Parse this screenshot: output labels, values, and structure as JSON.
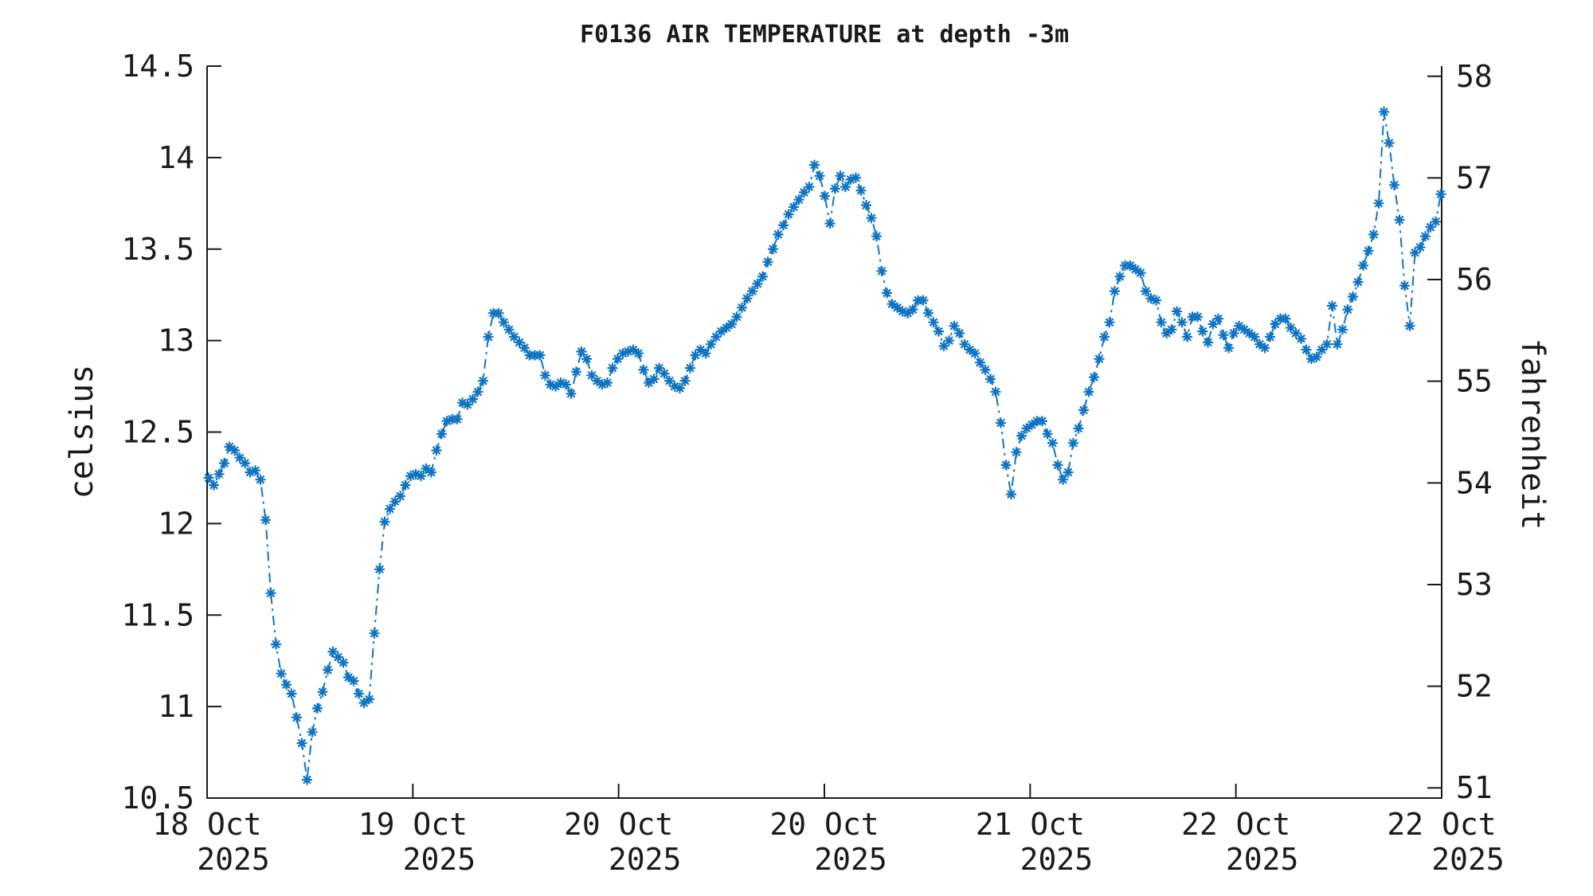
{
  "title": "F0136 AIR TEMPERATURE at depth -3m",
  "left_axis": {
    "label": "celsius",
    "ticks": [
      "14.5",
      "14",
      "13.5",
      "13",
      "12.5",
      "12",
      "11.5",
      "11",
      "10.5"
    ],
    "tick_values": [
      14.5,
      14,
      13.5,
      13,
      12.5,
      12,
      11.5,
      11,
      10.5
    ],
    "range": [
      10.5,
      14.5
    ]
  },
  "right_axis": {
    "label": "fahrenheit",
    "ticks": [
      "58",
      "57",
      "56",
      "55",
      "54",
      "53",
      "52",
      "51"
    ],
    "tick_values": [
      58,
      57,
      56,
      55,
      54,
      53,
      52,
      51
    ]
  },
  "x_axis": {
    "ticks": [
      {
        "line1": "18 Oct",
        "line2": "2025"
      },
      {
        "line1": "19 Oct",
        "line2": "2025"
      },
      {
        "line1": "20 Oct",
        "line2": "2025"
      },
      {
        "line1": "20 Oct",
        "line2": "2025"
      },
      {
        "line1": "21 Oct",
        "line2": "2025"
      },
      {
        "line1": "22 Oct",
        "line2": "2025"
      },
      {
        "line1": "22 Oct",
        "line2": "2025"
      }
    ]
  },
  "chart_data": {
    "type": "line",
    "title": "F0136 AIR TEMPERATURE at depth -3m",
    "ylabel_left": "celsius",
    "ylabel_right": "fahrenheit",
    "ylim_celsius": [
      10.5,
      14.5
    ],
    "right_ticks_fahrenheit": [
      51,
      52,
      53,
      54,
      55,
      56,
      57,
      58
    ],
    "x_tick_labels": [
      "18 Oct 2025",
      "19 Oct 2025",
      "20 Oct 2025",
      "20 Oct 2025",
      "21 Oct 2025",
      "22 Oct 2025",
      "22 Oct 2025"
    ],
    "grid": false,
    "legend": "none",
    "marker": "asterisk",
    "line_style": "dash-dot",
    "color": "#0e74c2",
    "x_frac_start": 0.00129,
    "x_frac_step": 0.0041935,
    "celsius": [
      12.25,
      12.21,
      12.27,
      12.33,
      12.42,
      12.4,
      12.36,
      12.33,
      12.28,
      12.29,
      12.24,
      12.02,
      11.62,
      11.34,
      11.18,
      11.12,
      11.07,
      10.94,
      10.8,
      10.6,
      10.86,
      10.99,
      11.08,
      11.2,
      11.3,
      11.27,
      11.24,
      11.16,
      11.14,
      11.07,
      11.02,
      11.04,
      11.4,
      11.75,
      12.01,
      12.08,
      12.12,
      12.15,
      12.21,
      12.26,
      12.27,
      12.26,
      12.3,
      12.28,
      12.4,
      12.49,
      12.56,
      12.57,
      12.57,
      12.66,
      12.65,
      12.68,
      12.72,
      12.78,
      13.02,
      13.15,
      13.15,
      13.1,
      13.06,
      13.02,
      12.99,
      12.96,
      12.92,
      12.92,
      12.92,
      12.81,
      12.76,
      12.75,
      12.77,
      12.76,
      12.71,
      12.83,
      12.94,
      12.9,
      12.81,
      12.78,
      12.76,
      12.77,
      12.85,
      12.9,
      12.93,
      12.94,
      12.95,
      12.93,
      12.84,
      12.77,
      12.79,
      12.85,
      12.82,
      12.78,
      12.75,
      12.74,
      12.78,
      12.85,
      12.92,
      12.95,
      12.93,
      12.98,
      13.02,
      13.05,
      13.07,
      13.09,
      13.13,
      13.18,
      13.23,
      13.27,
      13.31,
      13.35,
      13.43,
      13.5,
      13.58,
      13.63,
      13.69,
      13.73,
      13.77,
      13.81,
      13.84,
      13.96,
      13.9,
      13.79,
      13.64,
      13.83,
      13.9,
      13.84,
      13.88,
      13.89,
      13.82,
      13.74,
      13.67,
      13.57,
      13.38,
      13.26,
      13.2,
      13.18,
      13.16,
      13.15,
      13.17,
      13.22,
      13.22,
      13.15,
      13.1,
      13.05,
      12.97,
      13.0,
      13.08,
      13.04,
      12.98,
      12.95,
      12.93,
      12.88,
      12.84,
      12.79,
      12.72,
      12.55,
      12.32,
      12.16,
      12.39,
      12.48,
      12.52,
      12.54,
      12.56,
      12.56,
      12.49,
      12.44,
      12.32,
      12.24,
      12.28,
      12.44,
      12.52,
      12.62,
      12.72,
      12.8,
      12.9,
      13.02,
      13.1,
      13.27,
      13.35,
      13.41,
      13.41,
      13.39,
      13.37,
      13.27,
      13.23,
      13.22,
      13.1,
      13.04,
      13.06,
      13.16,
      13.1,
      13.02,
      13.13,
      13.13,
      13.05,
      12.99,
      13.09,
      13.12,
      13.03,
      12.96,
      13.04,
      13.08,
      13.06,
      13.04,
      13.02,
      12.98,
      12.96,
      13.02,
      13.09,
      13.12,
      13.12,
      13.07,
      13.04,
      13.01,
      12.95,
      12.9,
      12.91,
      12.95,
      12.98,
      13.19,
      12.98,
      13.06,
      13.17,
      13.24,
      13.32,
      13.41,
      13.49,
      13.58,
      13.75,
      14.25,
      14.08,
      13.85,
      13.66,
      13.3,
      13.08,
      13.48,
      13.51,
      13.57,
      13.62,
      13.65,
      13.8
    ]
  }
}
